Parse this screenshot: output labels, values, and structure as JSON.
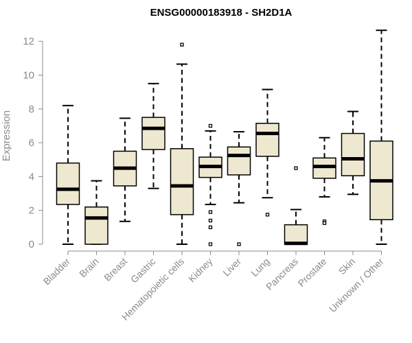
{
  "chart_data": {
    "type": "boxplot",
    "title": "ENSG00000183918 - SH2D1A",
    "xlabel": "",
    "ylabel": "Expression",
    "ylim": [
      0,
      12.6
    ],
    "yticks": [
      0,
      2,
      4,
      6,
      8,
      10,
      12
    ],
    "grid": false,
    "box_fill": "#efe8d0",
    "box_stroke": "#000000",
    "axis_color": "#8a8a8a",
    "categories": [
      "Bladder",
      "Brain",
      "Breast",
      "Gastric",
      "Hematopoietic cells",
      "Kidney",
      "Liver",
      "Lung",
      "Pancreas",
      "Prostate",
      "Skin",
      "Unknown / Other"
    ],
    "boxes": [
      {
        "min": 0.0,
        "q1": 2.35,
        "median": 3.25,
        "q3": 4.8,
        "max": 8.2,
        "outliers": []
      },
      {
        "min": 0.0,
        "q1": 0.0,
        "median": 1.55,
        "q3": 2.2,
        "max": 3.75,
        "outliers": []
      },
      {
        "min": 1.35,
        "q1": 3.45,
        "median": 4.5,
        "q3": 5.5,
        "max": 7.45,
        "outliers": []
      },
      {
        "min": 3.3,
        "q1": 5.6,
        "median": 6.85,
        "q3": 7.5,
        "max": 9.5,
        "outliers": []
      },
      {
        "min": 0.0,
        "q1": 1.75,
        "median": 3.45,
        "q3": 5.65,
        "max": 10.65,
        "outliers": [
          11.8
        ]
      },
      {
        "min": 2.35,
        "q1": 3.95,
        "median": 4.6,
        "q3": 5.15,
        "max": 6.7,
        "outliers": [
          7.0,
          1.9,
          1.4,
          1.0,
          0.0
        ]
      },
      {
        "min": 2.45,
        "q1": 4.1,
        "median": 5.25,
        "q3": 5.75,
        "max": 6.65,
        "outliers": [
          0.0
        ]
      },
      {
        "min": 2.75,
        "q1": 5.2,
        "median": 6.55,
        "q3": 7.15,
        "max": 9.15,
        "outliers": [
          1.75
        ]
      },
      {
        "min": 0.0,
        "q1": 0.0,
        "median": 0.05,
        "q3": 1.15,
        "max": 2.05,
        "outliers": [
          4.5
        ]
      },
      {
        "min": 2.8,
        "q1": 3.9,
        "median": 4.6,
        "q3": 5.1,
        "max": 6.3,
        "outliers": [
          1.35,
          1.25
        ]
      },
      {
        "min": 2.95,
        "q1": 4.05,
        "median": 5.05,
        "q3": 6.55,
        "max": 7.85,
        "outliers": []
      },
      {
        "min": 0.0,
        "q1": 1.45,
        "median": 3.75,
        "q3": 6.1,
        "max": 12.65,
        "outliers": []
      }
    ]
  }
}
